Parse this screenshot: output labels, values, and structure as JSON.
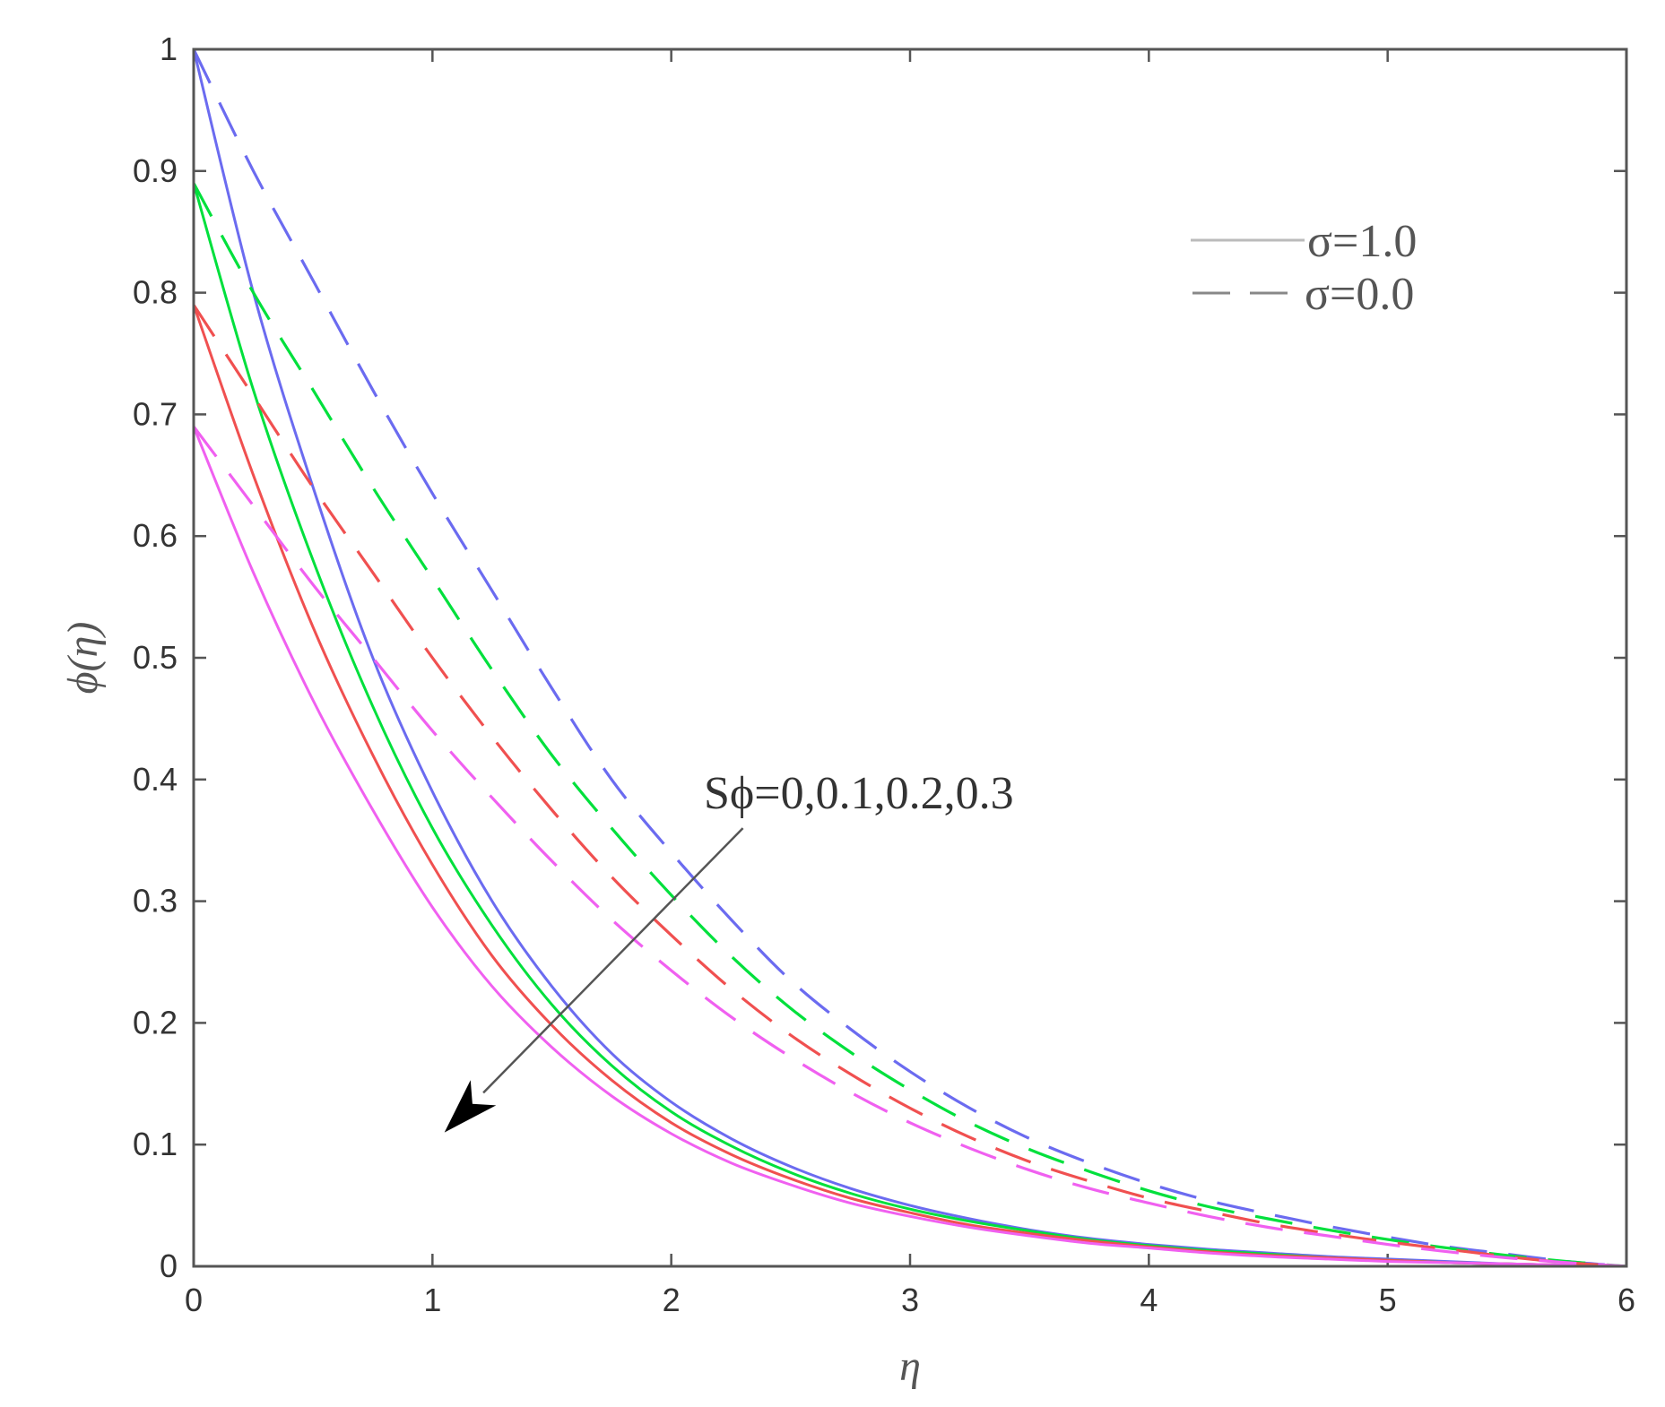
{
  "chart_data": {
    "type": "line",
    "xlabel": "η",
    "ylabel": "ϕ(η)",
    "xlim": [
      0,
      6
    ],
    "ylim": [
      0,
      1
    ],
    "xticks": [
      "0",
      "1",
      "2",
      "3",
      "4",
      "5",
      "6"
    ],
    "yticks": [
      "0",
      "0.1",
      "0.2",
      "0.3",
      "0.4",
      "0.5",
      "0.6",
      "0.7",
      "0.8",
      "0.9",
      "1"
    ],
    "grid": false,
    "legend_position": "top-right",
    "legend": [
      {
        "label": "σ=1.0",
        "style": "solid"
      },
      {
        "label": "σ=0.0",
        "style": "dashed"
      }
    ],
    "annotation": {
      "text": "Sϕ=0,0.1,0.2,0.3",
      "arrow_from": [
        2.3,
        0.36
      ],
      "arrow_to": [
        1.05,
        0.11
      ]
    },
    "x": [
      0,
      0.25,
      0.5,
      0.75,
      1,
      1.25,
      1.5,
      1.75,
      2,
      2.25,
      2.5,
      2.75,
      3,
      3.25,
      3.5,
      3.75,
      4,
      4.25,
      4.5,
      4.75,
      5,
      5.25,
      5.5,
      5.75,
      6
    ],
    "series": [
      {
        "style": "solid",
        "color": "#6b6bf0",
        "values": [
          1.0,
          0.8,
          0.64,
          0.5,
          0.39,
          0.3,
          0.23,
          0.175,
          0.135,
          0.105,
          0.082,
          0.064,
          0.05,
          0.039,
          0.03,
          0.023,
          0.018,
          0.014,
          0.011,
          0.008,
          0.006,
          0.004,
          0.002,
          0.001,
          0.0
        ]
      },
      {
        "style": "solid",
        "color": "#00e03c",
        "values": [
          0.89,
          0.72,
          0.58,
          0.46,
          0.36,
          0.28,
          0.215,
          0.165,
          0.127,
          0.099,
          0.077,
          0.06,
          0.047,
          0.037,
          0.029,
          0.022,
          0.017,
          0.013,
          0.01,
          0.007,
          0.005,
          0.003,
          0.002,
          0.001,
          0.0
        ]
      },
      {
        "style": "solid",
        "color": "#f05050",
        "values": [
          0.79,
          0.65,
          0.525,
          0.42,
          0.33,
          0.255,
          0.198,
          0.153,
          0.118,
          0.092,
          0.072,
          0.056,
          0.044,
          0.034,
          0.027,
          0.021,
          0.016,
          0.012,
          0.009,
          0.007,
          0.005,
          0.003,
          0.002,
          0.001,
          0.0
        ]
      },
      {
        "style": "solid",
        "color": "#f060f0",
        "values": [
          0.69,
          0.57,
          0.465,
          0.375,
          0.295,
          0.23,
          0.18,
          0.14,
          0.109,
          0.085,
          0.067,
          0.052,
          0.041,
          0.032,
          0.025,
          0.019,
          0.015,
          0.011,
          0.008,
          0.006,
          0.004,
          0.003,
          0.002,
          0.001,
          0.0
        ]
      },
      {
        "style": "dashed",
        "color": "#6b6bf0",
        "values": [
          1.0,
          0.9,
          0.81,
          0.72,
          0.635,
          0.555,
          0.475,
          0.4,
          0.34,
          0.285,
          0.235,
          0.195,
          0.16,
          0.13,
          0.105,
          0.085,
          0.068,
          0.054,
          0.043,
          0.033,
          0.024,
          0.016,
          0.01,
          0.004,
          0.0
        ]
      },
      {
        "style": "dashed",
        "color": "#00e03c",
        "values": [
          0.89,
          0.8,
          0.72,
          0.64,
          0.565,
          0.49,
          0.42,
          0.36,
          0.305,
          0.255,
          0.212,
          0.176,
          0.145,
          0.118,
          0.096,
          0.078,
          0.062,
          0.049,
          0.039,
          0.03,
          0.022,
          0.015,
          0.009,
          0.004,
          0.0
        ]
      },
      {
        "style": "dashed",
        "color": "#f05050",
        "values": [
          0.79,
          0.715,
          0.64,
          0.57,
          0.5,
          0.435,
          0.375,
          0.32,
          0.272,
          0.228,
          0.19,
          0.158,
          0.13,
          0.106,
          0.086,
          0.07,
          0.056,
          0.045,
          0.035,
          0.027,
          0.02,
          0.014,
          0.008,
          0.003,
          0.0
        ]
      },
      {
        "style": "dashed",
        "color": "#f060f0",
        "values": [
          0.69,
          0.625,
          0.56,
          0.5,
          0.44,
          0.385,
          0.333,
          0.285,
          0.243,
          0.205,
          0.172,
          0.143,
          0.118,
          0.097,
          0.079,
          0.064,
          0.052,
          0.041,
          0.032,
          0.025,
          0.018,
          0.012,
          0.007,
          0.003,
          0.0
        ]
      }
    ]
  }
}
